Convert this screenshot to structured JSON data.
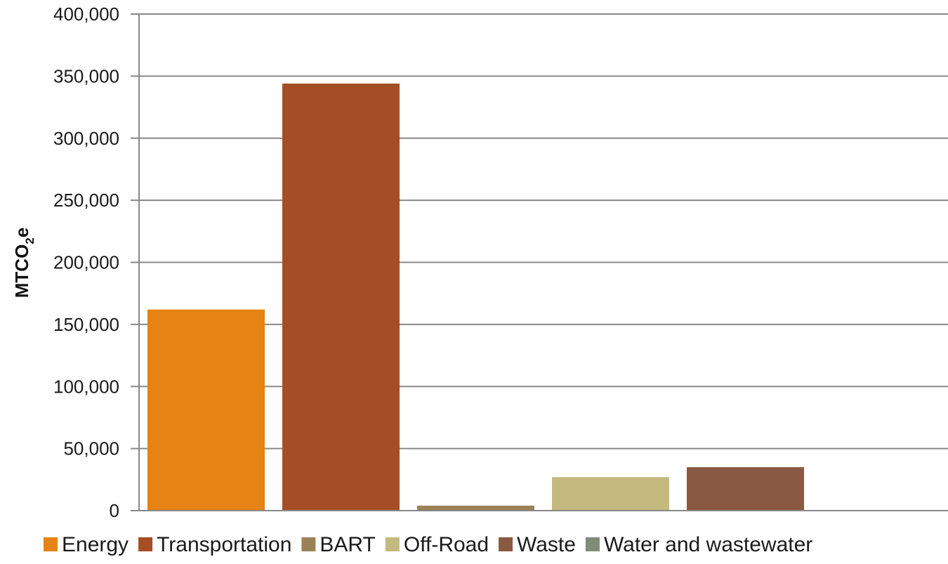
{
  "chart_data": {
    "type": "bar",
    "categories": [
      "Energy",
      "Transportation",
      "BART",
      "Off-Road",
      "Waste",
      "Water and wastewater"
    ],
    "values": [
      162000,
      344000,
      4000,
      27000,
      35000,
      0
    ],
    "colors": [
      "#E58315",
      "#A54E25",
      "#9B8256",
      "#C4B97E",
      "#8A5942",
      "#7F8C78"
    ],
    "ylabel": {
      "main": "MTCO",
      "sub": "2",
      "tail": "e"
    },
    "ylim": [
      0,
      400000
    ],
    "yticks": [
      "0",
      "50,000",
      "100,000",
      "150,000",
      "200,000",
      "250,000",
      "300,000",
      "350,000",
      "400,000"
    ],
    "grid": true,
    "legend_position": "bottom"
  }
}
